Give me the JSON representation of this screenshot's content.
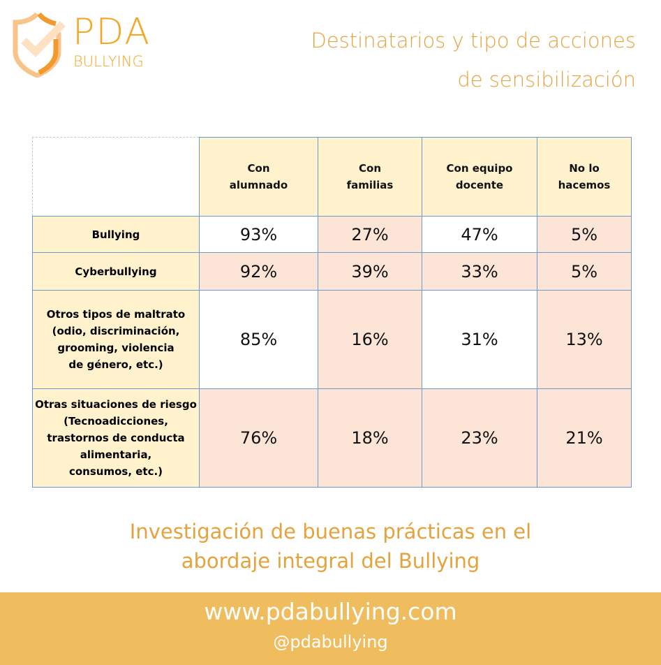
{
  "logo": {
    "line1": "PDA",
    "line2": "BULLYING",
    "icon": "shield-check-icon"
  },
  "title": {
    "line1": "Destinatarios y tipo de acciones",
    "line2": "de sensibilización"
  },
  "colors": {
    "accent": "#e6a23c",
    "header_fill": "#fff2cc",
    "highlight_fill": "#fce4d6",
    "border": "#6a9bd0",
    "footer": "#f0bd5e"
  },
  "chart_data": {
    "type": "table",
    "columns": [
      [
        "Con",
        "alumnado"
      ],
      [
        "Con",
        "familias"
      ],
      [
        "Con equipo",
        "docente"
      ],
      [
        "No lo",
        "hacemos"
      ]
    ],
    "rows": [
      {
        "label": [
          "Bullying"
        ],
        "values": [
          "93%",
          "27%",
          "47%",
          "5%"
        ],
        "highlight": [
          false,
          true,
          false,
          true
        ]
      },
      {
        "label": [
          "Cyberbullying"
        ],
        "values": [
          "92%",
          "39%",
          "33%",
          "5%"
        ],
        "highlight": [
          true,
          true,
          true,
          true
        ]
      },
      {
        "label": [
          "Otros tipos de maltrato",
          "(odio, discriminación,",
          "grooming, violencia",
          "de género, etc.)"
        ],
        "values": [
          "85%",
          "16%",
          "31%",
          "13%"
        ],
        "highlight": [
          false,
          true,
          false,
          true
        ]
      },
      {
        "label": [
          "Otras situaciones de riesgo",
          "(Tecnoadicciones,",
          "trastornos de conducta",
          "alimentaria,",
          "consumos, etc.)"
        ],
        "values": [
          "76%",
          "18%",
          "23%",
          "21%"
        ],
        "highlight": [
          true,
          true,
          true,
          true
        ]
      }
    ]
  },
  "subtitle": {
    "line1": "Investigación de buenas prácticas en el",
    "line2": "abordaje integral del Bullying"
  },
  "footer": {
    "url": "www.pdabullying.com",
    "handle": "@pdabullying"
  }
}
